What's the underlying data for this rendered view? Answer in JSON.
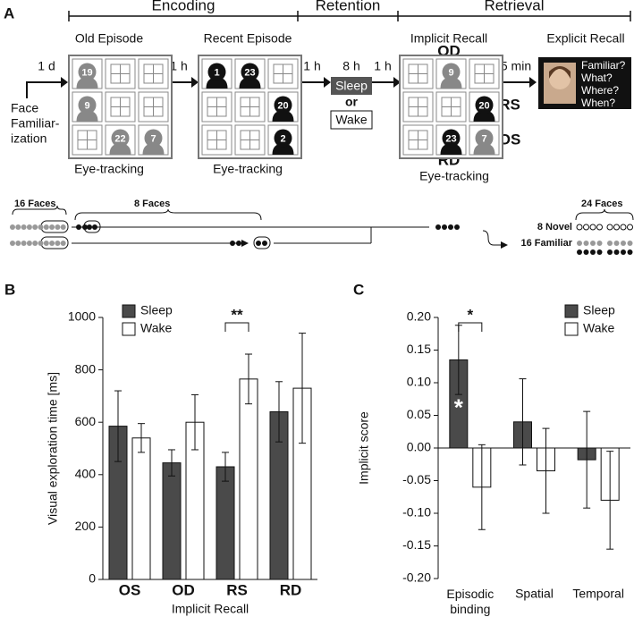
{
  "panel_a": {
    "panel_label": "A",
    "phases": [
      "Encoding",
      "Retention",
      "Retrieval"
    ],
    "stages": [
      "Old Episode",
      "Recent Episode",
      "Implicit Recall",
      "Explicit Recall"
    ],
    "delays": [
      "1 d",
      "1 h",
      "1 h",
      "8 h",
      "1 h",
      "5 min"
    ],
    "familiarization": [
      "Face",
      "Familiar-",
      "ization"
    ],
    "conditions": [
      "Sleep",
      "or",
      "Wake"
    ],
    "eye_tracking": [
      "Eye-tracking",
      "Eye-tracking",
      "Eye-tracking"
    ],
    "probe_labels": [
      "OD",
      "RS",
      "OS",
      "RD"
    ],
    "questions": [
      "Familiar?",
      "What?",
      "Where?",
      "When?"
    ],
    "old_faces": [
      "19",
      "9",
      "22",
      "7"
    ],
    "recent_faces": [
      "1",
      "23",
      "20",
      "2"
    ],
    "recall_faces": [
      "9",
      "20",
      "23",
      "7"
    ],
    "face_counts": [
      "16 Faces",
      "8 Faces",
      "24 Faces"
    ],
    "test_groups": [
      "8 Novel",
      "16 Familiar"
    ]
  },
  "chart_data": [
    {
      "type": "bar",
      "panel_label": "B",
      "y_label": "Visual exploration time [ms]",
      "x_label": "Implicit Recall",
      "categories": [
        "OS",
        "OD",
        "RS",
        "RD"
      ],
      "series": [
        {
          "name": "Sleep",
          "color": "#4a4a4a",
          "values": [
            585,
            445,
            430,
            640
          ],
          "errors": [
            135,
            50,
            55,
            115
          ]
        },
        {
          "name": "Wake",
          "color": "#ffffff",
          "values": [
            540,
            600,
            765,
            730
          ],
          "errors": [
            55,
            105,
            95,
            210
          ]
        }
      ],
      "ylim": [
        0,
        1000
      ],
      "yticks": [
        0,
        200,
        400,
        600,
        800,
        1000
      ],
      "annotations": [
        "**"
      ]
    },
    {
      "type": "bar",
      "panel_label": "C",
      "y_label": "Implicit score",
      "categories": [
        "Episodic binding",
        "Spatial",
        "Temporal"
      ],
      "series": [
        {
          "name": "Sleep",
          "color": "#4a4a4a",
          "values": [
            0.135,
            0.04,
            -0.018
          ],
          "errors": [
            0.053,
            0.066,
            0.074
          ]
        },
        {
          "name": "Wake",
          "color": "#ffffff",
          "values": [
            -0.06,
            -0.035,
            -0.08
          ],
          "errors": [
            0.065,
            0.065,
            0.075
          ]
        }
      ],
      "ylim": [
        -0.2,
        0.2
      ],
      "yticks": [
        {
          "value": -0.2,
          "label": "-0.20"
        },
        {
          "value": -0.15,
          "label": "-0.15"
        },
        {
          "value": -0.1,
          "label": "-0.10"
        },
        {
          "value": -0.05,
          "label": "-0.05"
        },
        {
          "value": 0,
          "label": "0.00"
        },
        {
          "value": 0.05,
          "label": "0.05"
        },
        {
          "value": 0.1,
          "label": "0.10"
        },
        {
          "value": 0.15,
          "label": "0.15"
        },
        {
          "value": 0.2,
          "label": "0.20"
        }
      ],
      "annotations": [
        "*",
        "*"
      ]
    }
  ]
}
